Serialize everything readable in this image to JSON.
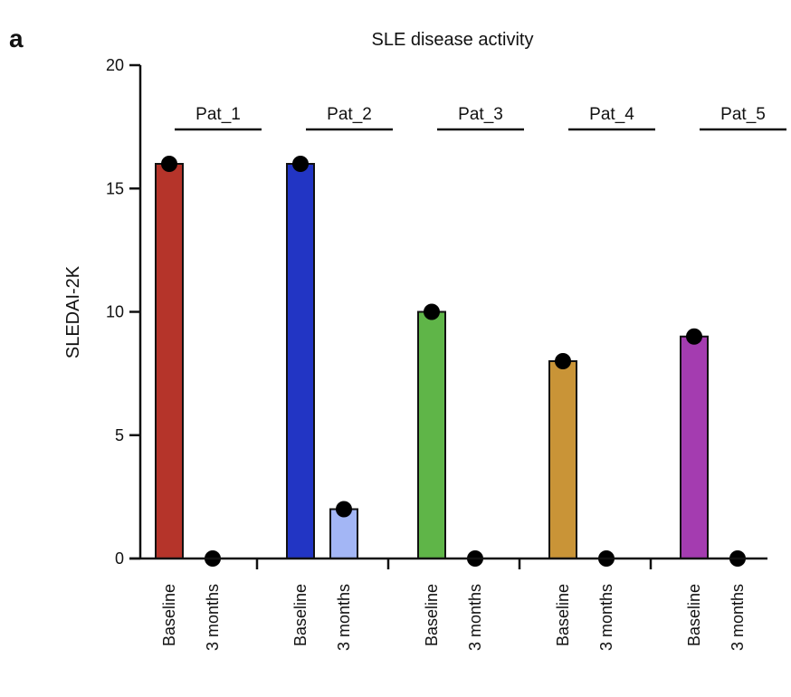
{
  "panel_label": "a",
  "chart_data": {
    "type": "bar",
    "title": "SLE disease activity",
    "xlabel": "",
    "ylabel": "SLEDAI-2K",
    "ylim": [
      0,
      20
    ],
    "yticks": [
      0,
      5,
      10,
      15,
      20
    ],
    "grid": false,
    "legend": "none",
    "categories": [
      "Baseline",
      "3 months"
    ],
    "groups": [
      {
        "name": "Pat_1",
        "bars": [
          {
            "category": "Baseline",
            "value": 16,
            "color": "#b5342a"
          },
          {
            "category": "3 months",
            "value": 0,
            "color": "#e8a6a0"
          }
        ]
      },
      {
        "name": "Pat_2",
        "bars": [
          {
            "category": "Baseline",
            "value": 16,
            "color": "#2235c4"
          },
          {
            "category": "3 months",
            "value": 2,
            "color": "#a3b6f5"
          }
        ]
      },
      {
        "name": "Pat_3",
        "bars": [
          {
            "category": "Baseline",
            "value": 10,
            "color": "#5fb548"
          },
          {
            "category": "3 months",
            "value": 0,
            "color": "#b6e0a8"
          }
        ]
      },
      {
        "name": "Pat_4",
        "bars": [
          {
            "category": "Baseline",
            "value": 8,
            "color": "#c99437"
          },
          {
            "category": "3 months",
            "value": 0,
            "color": "#ecd39c"
          }
        ]
      },
      {
        "name": "Pat_5",
        "bars": [
          {
            "category": "Baseline",
            "value": 9,
            "color": "#a43cb0"
          },
          {
            "category": "3 months",
            "value": 0,
            "color": "#dfb0e6"
          }
        ]
      }
    ],
    "colors": {
      "axis": "#111111",
      "point": "#000000",
      "bar_outline": "#111111"
    }
  }
}
